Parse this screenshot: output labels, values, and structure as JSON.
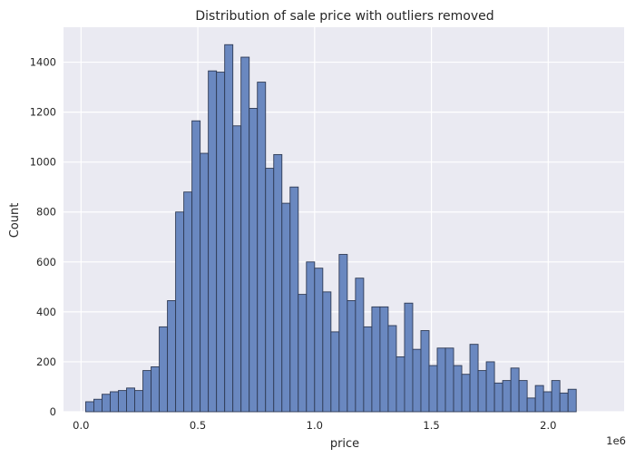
{
  "chart_data": {
    "type": "bar",
    "title": "Distribution of sale price with outliers removed",
    "xlabel": "price",
    "ylabel": "Count",
    "x_offset_text": "1e6",
    "xlim": [
      -75000,
      2325000
    ],
    "ylim": [
      0,
      1540
    ],
    "xticks": [
      0,
      500000,
      1000000,
      1500000,
      2000000
    ],
    "xtick_labels": [
      "0.0",
      "0.5",
      "1.0",
      "1.5",
      "2.0"
    ],
    "yticks": [
      0,
      200,
      400,
      600,
      800,
      1000,
      1200,
      1400
    ],
    "ytick_labels": [
      "0",
      "200",
      "400",
      "600",
      "800",
      "1000",
      "1200",
      "1400"
    ],
    "grid": true,
    "bin_start": 20000,
    "bin_width": 35000,
    "values": [
      40,
      50,
      70,
      80,
      85,
      95,
      85,
      165,
      180,
      340,
      445,
      800,
      880,
      1165,
      1035,
      1365,
      1360,
      1470,
      1145,
      1420,
      1215,
      1320,
      975,
      1030,
      835,
      900,
      470,
      600,
      575,
      480,
      320,
      630,
      445,
      535,
      340,
      420,
      420,
      345,
      220,
      435,
      250,
      325,
      185,
      255,
      255,
      185,
      150,
      270,
      165,
      200,
      115,
      125,
      175,
      125,
      55,
      105,
      80,
      125,
      75,
      90
    ],
    "colors": {
      "background": "#eaeaf2",
      "bar_fill": "#6a88c0",
      "bar_edge": "#2f3b55",
      "grid": "#ffffff"
    }
  }
}
